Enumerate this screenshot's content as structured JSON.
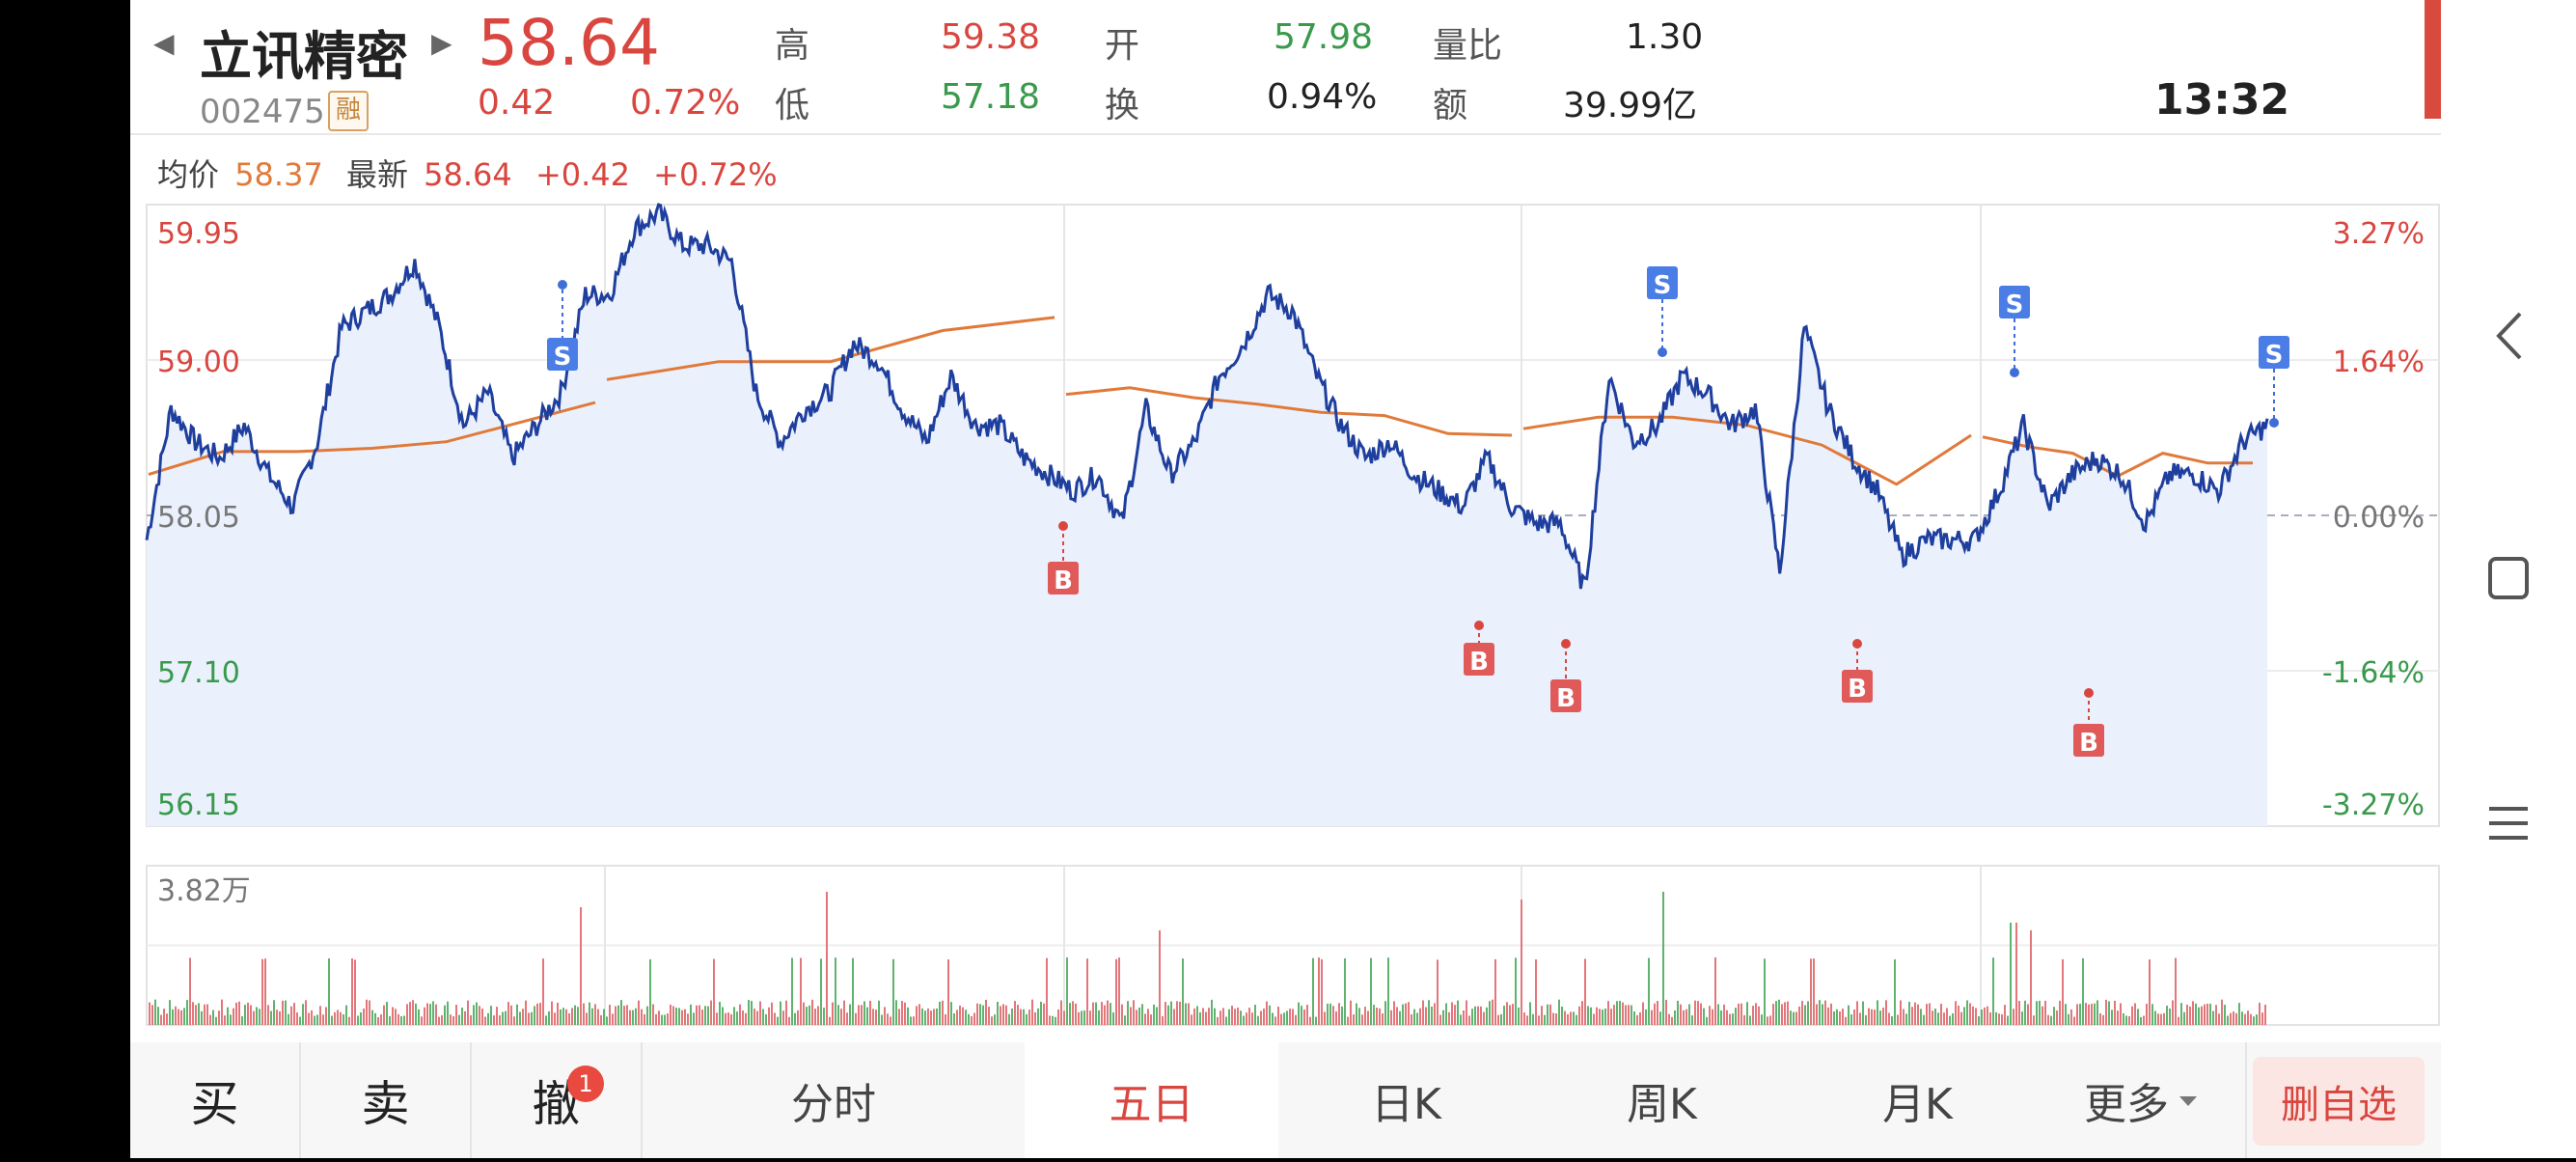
{
  "header": {
    "prev_arrow": "◀",
    "next_arrow": "▶",
    "stock_name": "立讯精密",
    "stock_code": "002475",
    "rong_tag": "融",
    "price": "58.64",
    "change": "0.42",
    "change_pct": "0.72%",
    "time": "13:32",
    "stats": {
      "high_label": "高",
      "high_value": "59.38",
      "low_label": "低",
      "low_value": "57.18",
      "open_label": "开",
      "open_value": "57.98",
      "turnover_label": "换",
      "turnover_value": "0.94%",
      "vol_ratio_label": "量比",
      "vol_ratio_value": "1.30",
      "amount_label": "额",
      "amount_value": "39.99亿"
    }
  },
  "info_line": {
    "avg_label": "均价",
    "avg_value": "58.37",
    "latest_label": "最新",
    "latest_value": "58.64",
    "change": "+0.42",
    "change_pct": "+0.72%"
  },
  "chart_data": {
    "type": "line",
    "period": "five-day intraday",
    "series": [
      {
        "values": [
          57.9,
          58.7,
          58.5,
          58.4,
          58.6,
          58.3,
          58.1,
          58.5,
          59.2,
          59.3,
          59.4,
          59.6,
          59.2,
          58.6,
          58.8,
          58.4,
          58.6,
          58.8,
          59.4,
          59.4,
          59.8,
          59.9,
          59.7,
          59.7,
          59.6,
          58.8,
          58.5,
          58.7,
          58.8,
          59.1,
          59.0,
          58.7,
          58.5,
          58.9,
          58.6,
          58.6,
          58.4,
          58.3,
          58.2,
          58.3,
          58.0,
          58.7,
          58.3,
          58.5,
          58.9,
          59.1,
          59.4,
          59.3,
          58.9,
          58.6,
          58.4,
          58.5,
          58.3,
          58.2,
          58.1,
          58.4,
          58.1,
          58.0,
          58.0,
          57.6,
          58.9,
          58.5,
          58.6,
          58.9,
          58.8,
          58.6,
          58.7,
          57.7,
          59.2,
          58.7,
          58.4,
          58.2,
          57.8,
          57.9,
          57.9,
          57.9,
          58.2,
          58.6,
          58.1,
          58.3,
          58.4,
          58.3,
          58.0,
          58.3,
          58.3,
          58.2,
          58.5,
          58.6
        ],
        "name": "最新"
      },
      {
        "values": [
          58.3,
          58.44,
          58.44,
          58.46,
          58.5,
          58.62,
          58.74,
          58.88,
          58.99,
          58.99,
          59.18,
          59.26,
          58.79,
          58.83,
          58.77,
          58.73,
          58.68,
          58.66,
          58.55,
          58.54,
          58.58,
          58.65,
          58.65,
          58.6,
          58.48,
          58.24,
          58.54,
          58.53,
          58.47,
          58.43,
          58.29,
          58.43,
          58.37,
          58.37
        ],
        "name": "均价"
      }
    ],
    "ylabel_left_ticks": [
      "59.95",
      "59.00",
      "58.05",
      "57.10",
      "56.15"
    ],
    "ylabel_right_ticks": [
      "3.27%",
      "1.64%",
      "0.00%",
      "-1.64%",
      "-3.27%"
    ],
    "ylim": [
      56.15,
      59.95
    ],
    "baseline": 58.05,
    "volume_label": "3.82万",
    "buy_markers": [
      "B",
      "B",
      "B",
      "B",
      "B"
    ],
    "sell_markers": [
      "S",
      "S",
      "S",
      "S"
    ],
    "colors": {
      "price_line": "#1f3f9e",
      "avg_line": "#e07a3b",
      "fill": "#eaf1fc",
      "up": "#e3767a",
      "down": "#5fb36e"
    }
  },
  "tabs": {
    "buy": "买",
    "sell": "卖",
    "cancel": "撤",
    "cancel_badge": "1",
    "fenshi": "分时",
    "wuri": "五日",
    "rik": "日K",
    "zhouk": "周K",
    "yuek": "月K",
    "more": "更多",
    "delete_watch": "删自选"
  },
  "system_nav": {
    "back_icon": "back-icon",
    "home_icon": "home-icon",
    "menu_icon": "menu-icon"
  }
}
